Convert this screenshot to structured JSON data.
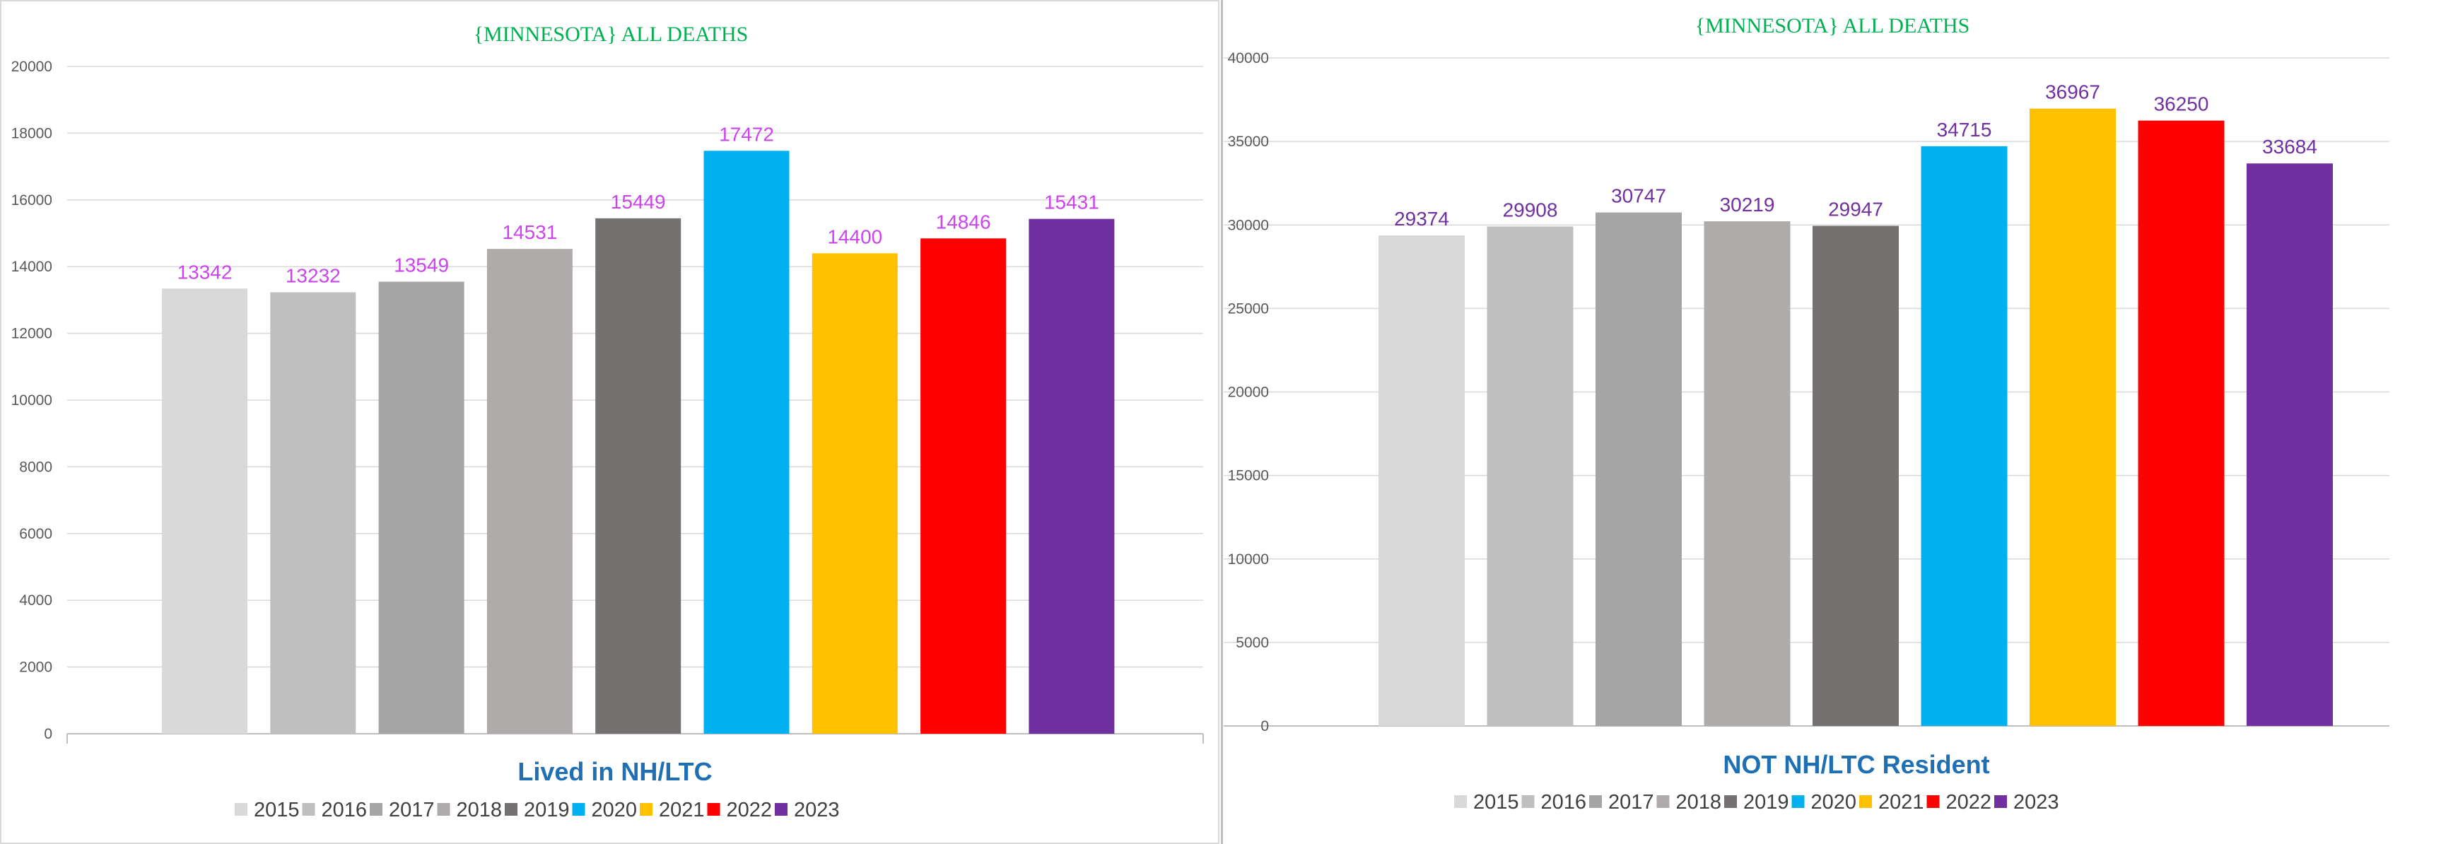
{
  "chart_data": [
    {
      "type": "bar",
      "title": "{MINNESOTA}   ALL DEATHS",
      "xlabel": "Lived in NH/LTC",
      "ylabel": "",
      "categories": [
        "2015",
        "2016",
        "2017",
        "2018",
        "2019",
        "2020",
        "2021",
        "2022",
        "2023"
      ],
      "values": [
        13342,
        13232,
        13549,
        14531,
        15449,
        17472,
        14400,
        14846,
        15431
      ],
      "ylim": [
        0,
        20000
      ],
      "ytick_step": 2000,
      "colors": [
        "#d9d9d9",
        "#bfbfbf",
        "#a5a5a5",
        "#afabab",
        "#767171",
        "#00b0f0",
        "#ffc000",
        "#ff0000",
        "#7030a0"
      ],
      "label_color": "#cc44ee",
      "legend_position": "bottom"
    },
    {
      "type": "bar",
      "title": "{MINNESOTA}   ALL DEATHS",
      "xlabel": "NOT NH/LTC Resident",
      "ylabel": "",
      "categories": [
        "2015",
        "2016",
        "2017",
        "2018",
        "2019",
        "2020",
        "2021",
        "2022",
        "2023"
      ],
      "values": [
        29374,
        29908,
        30747,
        30219,
        29947,
        34715,
        36967,
        36250,
        33684
      ],
      "ylim": [
        0,
        40000
      ],
      "ytick_step": 5000,
      "colors": [
        "#d9d9d9",
        "#bfbfbf",
        "#a5a5a5",
        "#afabab",
        "#767171",
        "#00b0f0",
        "#ffc000",
        "#ff0000",
        "#7030a0"
      ],
      "label_color": "#7030a0",
      "legend_position": "bottom"
    }
  ]
}
